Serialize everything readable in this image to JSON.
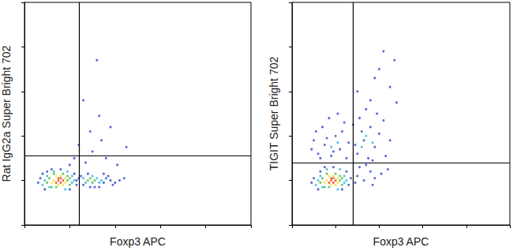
{
  "chart_data": [
    {
      "type": "scatter",
      "x_label": "Foxp3 APC",
      "y_label": "Rat IgG2a Super Bright 702",
      "xlim": [
        0,
        100
      ],
      "ylim": [
        0,
        100
      ],
      "xticks": [
        0,
        20,
        40,
        60,
        80,
        100
      ],
      "yticks": [
        0,
        20,
        40,
        60,
        80,
        100
      ],
      "tick_labels": false,
      "grid": false,
      "quadrant": {
        "x": 24,
        "y": 31
      },
      "series": [
        {
          "color": "#2b3fd0",
          "x": [
            7,
            23,
            9,
            22,
            12,
            24,
            6,
            16,
            10,
            20,
            8,
            23,
            26,
            35,
            36,
            28,
            33,
            38,
            31,
            37,
            40,
            29,
            35,
            42,
            25,
            39,
            44,
            27,
            30,
            34,
            29,
            36,
            24,
            38,
            22,
            41,
            33,
            26,
            45,
            32,
            20
          ],
          "values": [
            21,
            18,
            16,
            23,
            25,
            21,
            19,
            25,
            24,
            16,
            23,
            20,
            18,
            19,
            21,
            23,
            17,
            20,
            17,
            22,
            19,
            17,
            23,
            20,
            22,
            18,
            21,
            28,
            33,
            38,
            42,
            30,
            36,
            44,
            30,
            27,
            49,
            56,
            35,
            74,
            27
          ]
        },
        {
          "color": "#1fb5e0",
          "x": [
            9,
            21,
            10,
            21,
            11,
            22,
            13,
            18,
            8,
            19,
            27,
            32,
            33,
            26,
            30,
            34
          ],
          "values": [
            20,
            19,
            22,
            22,
            17,
            20,
            24,
            16,
            18,
            24,
            19,
            21,
            19,
            21,
            22,
            20
          ]
        },
        {
          "color": "#3fbf3f",
          "x": [
            11,
            19,
            12,
            19,
            13,
            20,
            10,
            17,
            14,
            20,
            28,
            30,
            29,
            31
          ],
          "values": [
            21,
            20,
            17,
            22,
            23,
            18,
            19,
            23,
            17,
            21,
            20,
            19,
            21,
            20
          ]
        },
        {
          "color": "#f2e224",
          "x": [
            13,
            18,
            17,
            14,
            12,
            18,
            15,
            16
          ],
          "values": [
            20,
            21,
            18,
            22,
            19,
            19,
            18,
            22
          ]
        },
        {
          "color": "#e8401c",
          "x": [
            15,
            16,
            14,
            17,
            15,
            16
          ],
          "values": [
            20,
            21,
            19,
            20,
            21,
            19
          ]
        }
      ]
    },
    {
      "type": "scatter",
      "x_label": "Foxp3 APC",
      "y_label": "TIGIT Super Bright 702",
      "xlim": [
        0,
        100
      ],
      "ylim": [
        0,
        100
      ],
      "xticks": [
        0,
        20,
        40,
        60,
        80,
        100
      ],
      "yticks": [
        0,
        20,
        40,
        60,
        80,
        100
      ],
      "tick_labels": false,
      "grid": false,
      "quadrant": {
        "x": 28,
        "y": 28
      },
      "series": [
        {
          "color": "#2b3fd0",
          "x": [
            10,
            26,
            12,
            25,
            15,
            27,
            9,
            19,
            13,
            23,
            30,
            33,
            36,
            31,
            38,
            34,
            29,
            41,
            37,
            44,
            12,
            15,
            18,
            20,
            14,
            22,
            10,
            24,
            17,
            25,
            11,
            21,
            16,
            19,
            26,
            13,
            23,
            9,
            30,
            33,
            36,
            31,
            38,
            35,
            40,
            29,
            42,
            34,
            37,
            32,
            45,
            39,
            28,
            43,
            36,
            38,
            40,
            45,
            30,
            48,
            42,
            47
          ],
          "values": [
            21,
            18,
            16,
            24,
            26,
            21,
            19,
            26,
            24,
            16,
            22,
            20,
            24,
            26,
            21,
            27,
            19,
            23,
            18,
            25,
            32,
            36,
            31,
            40,
            44,
            34,
            38,
            46,
            48,
            30,
            42,
            50,
            39,
            33,
            37,
            30,
            42,
            34,
            32,
            38,
            44,
            48,
            35,
            30,
            41,
            36,
            47,
            52,
            29,
            42,
            38,
            50,
            45,
            31,
            56,
            66,
            70,
            62,
            60,
            55,
            78,
            74
          ]
        },
        {
          "color": "#1fb5e0",
          "x": [
            12,
            24,
            13,
            24,
            14,
            25,
            16,
            21,
            11,
            22,
            18,
            21,
            34,
            37,
            32
          ],
          "values": [
            20,
            19,
            22,
            22,
            17,
            20,
            25,
            16,
            18,
            25,
            35,
            37,
            40,
            37,
            35
          ]
        },
        {
          "color": "#3fbf3f",
          "x": [
            14,
            22,
            15,
            22,
            16,
            23,
            13,
            20,
            17,
            23
          ],
          "values": [
            21,
            20,
            17,
            22,
            23,
            18,
            19,
            23,
            17,
            21
          ]
        },
        {
          "color": "#f2e224",
          "x": [
            16,
            21,
            20,
            17,
            15,
            21,
            18,
            19
          ],
          "values": [
            20,
            21,
            18,
            22,
            19,
            19,
            18,
            22
          ]
        },
        {
          "color": "#e8401c",
          "x": [
            18,
            19,
            17,
            20,
            18,
            19
          ],
          "values": [
            20,
            21,
            19,
            20,
            21,
            19
          ]
        }
      ]
    }
  ]
}
